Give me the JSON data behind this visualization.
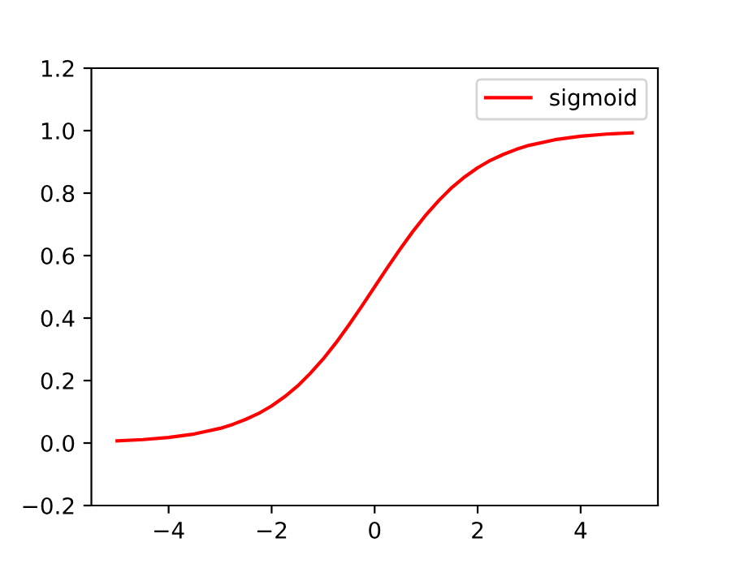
{
  "chart_data": {
    "type": "line",
    "x": [
      -5,
      -4.5,
      -4,
      -3.5,
      -3,
      -2.75,
      -2.5,
      -2.25,
      -2,
      -1.75,
      -1.5,
      -1.25,
      -1,
      -0.75,
      -0.5,
      -0.25,
      0,
      0.25,
      0.5,
      0.75,
      1,
      1.25,
      1.5,
      1.75,
      2,
      2.25,
      2.5,
      2.75,
      3,
      3.5,
      4,
      4.5,
      5
    ],
    "series": [
      {
        "name": "sigmoid",
        "color": "#ff0000",
        "values": [
          0.007,
          0.011,
          0.018,
          0.029,
          0.047,
          0.06,
          0.076,
          0.095,
          0.119,
          0.148,
          0.182,
          0.223,
          0.269,
          0.321,
          0.378,
          0.438,
          0.5,
          0.562,
          0.622,
          0.679,
          0.731,
          0.777,
          0.818,
          0.852,
          0.881,
          0.905,
          0.924,
          0.94,
          0.953,
          0.971,
          0.982,
          0.989,
          0.993
        ]
      }
    ],
    "xlim": [
      -5.5,
      5.5
    ],
    "xticks": [
      {
        "value": -4,
        "label": "−4"
      },
      {
        "value": -2,
        "label": "−2"
      },
      0,
      2,
      4
    ],
    "ylim": [
      -0.2,
      1.2
    ],
    "yticks": [
      {
        "value": -0.2,
        "label": "−0.2"
      },
      {
        "value": 0,
        "label": "0.0"
      },
      {
        "value": 0.2,
        "label": "0.2"
      },
      {
        "value": 0.4,
        "label": "0.4"
      },
      {
        "value": 0.6,
        "label": "0.6"
      },
      {
        "value": 0.8,
        "label": "0.8"
      },
      {
        "value": 1,
        "label": "1.0"
      },
      {
        "value": 1.2,
        "label": "1.2"
      }
    ],
    "legend": "top right",
    "grid": false,
    "marker": "none",
    "line_style": "solid"
  }
}
